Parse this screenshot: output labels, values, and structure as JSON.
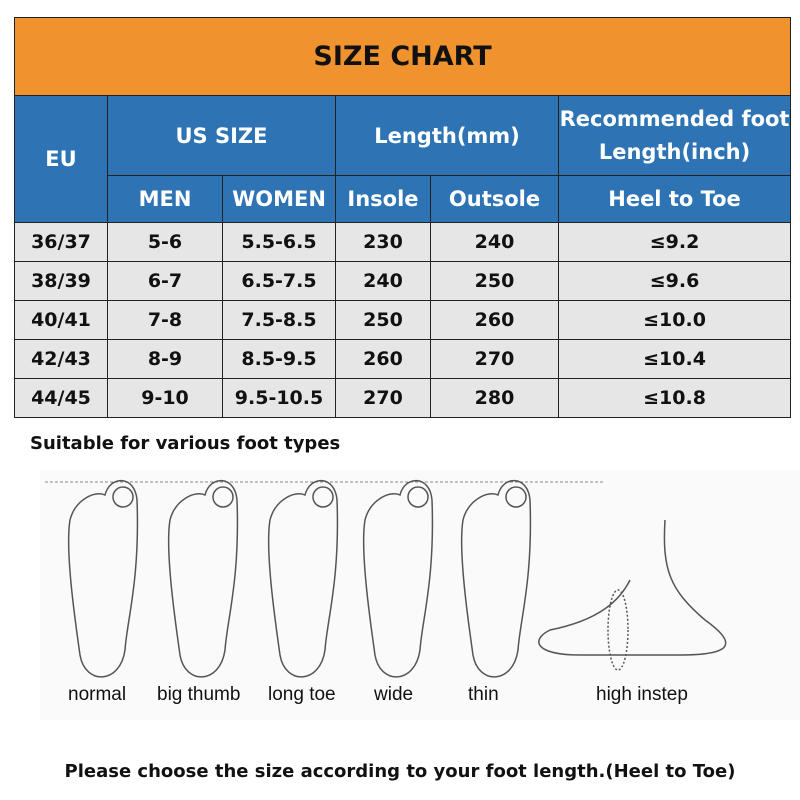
{
  "title": "SIZE CHART",
  "headers": {
    "eu": "EU",
    "us": "US SIZE",
    "length": "Length(mm)",
    "recommended": "Recommended foot Length(inch)",
    "men": "MEN",
    "women": "WOMEN",
    "insole": "Insole",
    "outsole": "Outsole",
    "heel": "Heel to Toe"
  },
  "rows": [
    [
      "36/37",
      "5-6",
      "5.5-6.5",
      "230",
      "240",
      "≤9.2"
    ],
    [
      "38/39",
      "6-7",
      "6.5-7.5",
      "240",
      "250",
      "≤9.6"
    ],
    [
      "40/41",
      "7-8",
      "7.5-8.5",
      "250",
      "260",
      "≤10.0"
    ],
    [
      "42/43",
      "8-9",
      "8.5-9.5",
      "260",
      "270",
      "≤10.4"
    ],
    [
      "44/45",
      "9-10",
      "9.5-10.5",
      "270",
      "280",
      "≤10.8"
    ]
  ],
  "subtitle": "Suitable for various foot types",
  "foot_types": [
    "normal",
    "big thumb",
    "long toe",
    "wide",
    "thin",
    "high instep"
  ],
  "footer": "Please choose the size according to your foot length.(Heel to Toe)",
  "colors": {
    "title_bg": "#F0922E",
    "header_bg": "#2E74B5",
    "row_bg": "#E6E6E6"
  }
}
